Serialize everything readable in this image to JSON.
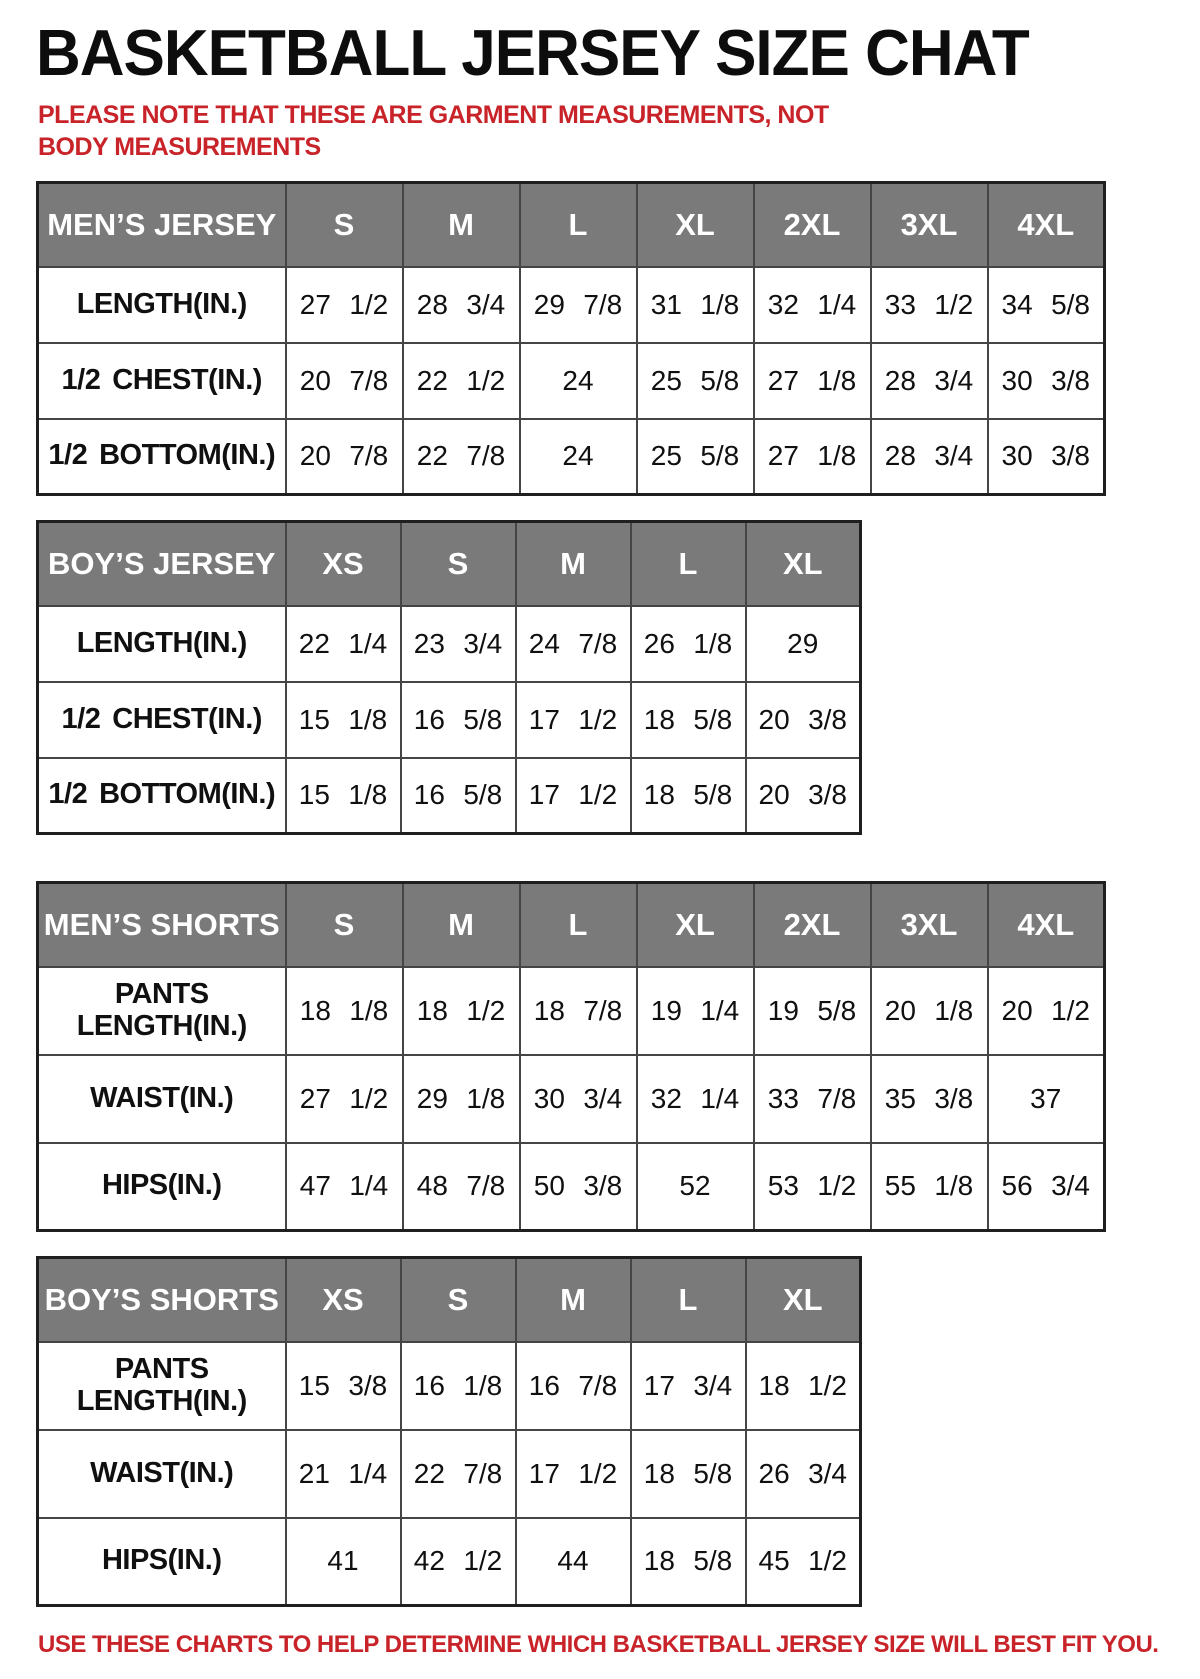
{
  "page": {
    "title": "BASKETBALL JERSEY SIZE CHAT",
    "note_top": "PLEASE NOTE THAT THESE ARE GARMENT MEASUREMENTS, NOT BODY MEASUREMENTS",
    "note_bottom": "USE THESE CHARTS TO HELP DETERMINE WHICH BASKETBALL JERSEY SIZE WILL BEST FIT YOU.",
    "colors": {
      "note_red": "#c9232a",
      "header_bg": "#7a7a7a",
      "header_text": "#ffffff",
      "border": "#454545"
    }
  },
  "tables": [
    {
      "id": "mens-jersey",
      "header": [
        "MEN’S JERSEY",
        "S",
        "M",
        "L",
        "XL",
        "2XL",
        "3XL",
        "4XL"
      ],
      "rows": [
        [
          "LENGTH(IN.)",
          "27 1/2",
          "28 3/4",
          "29 7/8",
          "31 1/8",
          "32 1/4",
          "33 1/2",
          "34 5/8"
        ],
        [
          "1/2 CHEST(IN.)",
          "20 7/8",
          "22 1/2",
          "24",
          "25 5/8",
          "27 1/8",
          "28 3/4",
          "30 3/8"
        ],
        [
          "1/2 BOTTOM(IN.)",
          "20 7/8",
          "22 7/8",
          "24",
          "25 5/8",
          "27 1/8",
          "28 3/4",
          "30 3/8"
        ]
      ]
    },
    {
      "id": "boys-jersey",
      "header": [
        "BOY’S JERSEY",
        "XS",
        "S",
        "M",
        "L",
        "XL"
      ],
      "rows": [
        [
          "LENGTH(IN.)",
          "22 1/4",
          "23 3/4",
          "24 7/8",
          "26 1/8",
          "29"
        ],
        [
          "1/2 CHEST(IN.)",
          "15 1/8",
          "16 5/8",
          "17 1/2",
          "18 5/8",
          "20 3/8"
        ],
        [
          "1/2 BOTTOM(IN.)",
          "15 1/8",
          "16 5/8",
          "17 1/2",
          "18 5/8",
          "20 3/8"
        ]
      ]
    },
    {
      "id": "mens-shorts",
      "header": [
        "MEN’S SHORTS",
        "S",
        "M",
        "L",
        "XL",
        "2XL",
        "3XL",
        "4XL"
      ],
      "rows": [
        [
          "PANTS LENGTH(IN.)",
          "18 1/8",
          "18 1/2",
          "18 7/8",
          "19 1/4",
          "19 5/8",
          "20 1/8",
          "20 1/2"
        ],
        [
          "WAIST(IN.)",
          "27 1/2",
          "29 1/8",
          "30 3/4",
          "32 1/4",
          "33 7/8",
          "35 3/8",
          "37"
        ],
        [
          "HIPS(IN.)",
          "47 1/4",
          "48 7/8",
          "50 3/8",
          "52",
          "53 1/2",
          "55 1/8",
          "56 3/4"
        ]
      ]
    },
    {
      "id": "boys-shorts",
      "header": [
        "BOY’S SHORTS",
        "XS",
        "S",
        "M",
        "L",
        "XL"
      ],
      "rows": [
        [
          "PANTS LENGTH(IN.)",
          "15 3/8",
          "16 1/8",
          "16 7/8",
          "17 3/4",
          "18 1/2"
        ],
        [
          "WAIST(IN.)",
          "21 1/4",
          "22 7/8",
          "17 1/2",
          "18 5/8",
          "26 3/4"
        ],
        [
          "HIPS(IN.)",
          "41",
          "42 1/2",
          "44",
          "18 5/8",
          "45 1/2"
        ]
      ]
    }
  ]
}
